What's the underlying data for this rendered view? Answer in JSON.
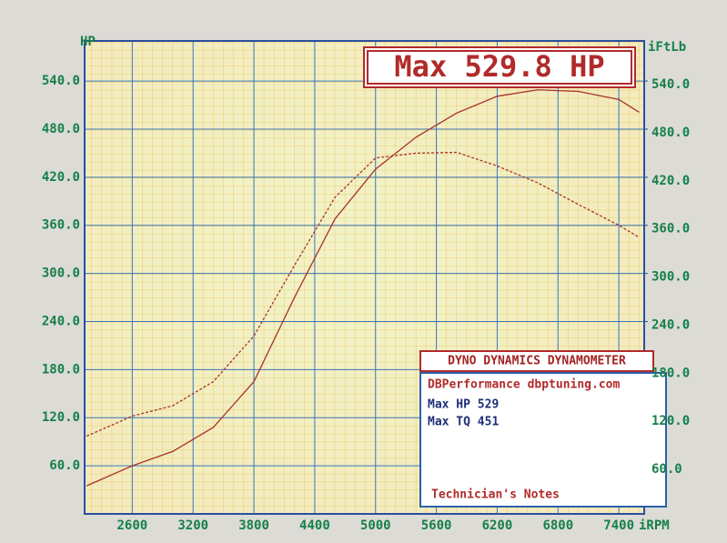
{
  "chart_data": {
    "type": "line",
    "title": "Max 529.8 HP",
    "y_label": "HP",
    "y2_label": "iFtLb",
    "x_label": "iRPM",
    "x": [
      2150,
      2600,
      3000,
      3400,
      3800,
      4200,
      4600,
      5000,
      5400,
      5800,
      6200,
      6600,
      7000,
      7400,
      7600
    ],
    "series": [
      {
        "color": "#a8322e",
        "values": [
          35,
          60,
          78,
          108,
          165,
          270,
          368,
          430,
          470,
          500,
          521,
          529,
          527,
          517,
          501
        ]
      },
      {
        "color": "#a8322e",
        "axis": "y2",
        "dashed": true,
        "values": [
          97,
          122,
          135,
          165,
          222,
          310,
          395,
          444,
          450,
          451,
          434,
          413,
          386,
          360,
          345
        ]
      }
    ],
    "xlim": [
      2130,
      7650
    ],
    "xticks": [
      2600,
      3200,
      3800,
      4400,
      5000,
      5600,
      6200,
      6800,
      7400
    ],
    "ylim": [
      0,
      590
    ],
    "yticks": [
      {
        "value": 60,
        "label": "60.0"
      },
      {
        "value": 120,
        "label": "120.0"
      },
      {
        "value": 180,
        "label": "180.0"
      },
      {
        "value": 240,
        "label": "240.0"
      },
      {
        "value": 300,
        "label": "300.0"
      },
      {
        "value": 360,
        "label": "360.0"
      },
      {
        "value": 420,
        "label": "420.0"
      },
      {
        "value": 480,
        "label": "480.0"
      },
      {
        "value": 540,
        "label": "540.0"
      }
    ],
    "y2lim": [
      0,
      590
    ],
    "y2ticks": [
      {
        "value": 60,
        "label": "60.0"
      },
      {
        "value": 120,
        "label": "120.0"
      },
      {
        "value": 180,
        "label": "180.0"
      },
      {
        "value": 240,
        "label": "240.0"
      },
      {
        "value": 300,
        "label": "300.0"
      },
      {
        "value": 360,
        "label": "360.0"
      },
      {
        "value": 420,
        "label": "420.0"
      },
      {
        "value": 480,
        "label": "480.0"
      },
      {
        "value": 540,
        "label": "540.0"
      }
    ],
    "grid": true,
    "info_box": {
      "header": "DYNO DYNAMICS DYNAMOMETER",
      "lines": [
        "DBPerformance dbptuning.com",
        "Max HP 529",
        "Max TQ 451"
      ],
      "footer": "Technician's Notes"
    }
  }
}
